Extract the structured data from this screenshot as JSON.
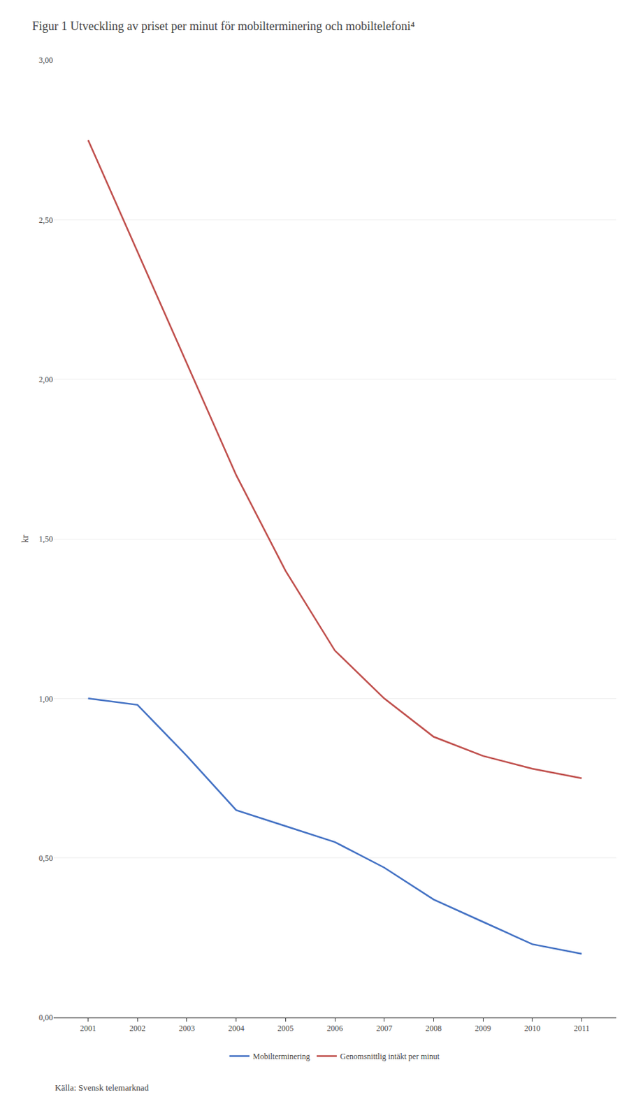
{
  "chart_data": {
    "type": "line",
    "title": "Figur 1 Utveckling av priset per minut för mobilterminering och mobiltelefoni⁴",
    "ylabel": "kr",
    "annotations": [
      "Källa: Svensk telemarknad"
    ],
    "x": [
      2001,
      2002,
      2003,
      2004,
      2005,
      2006,
      2007,
      2008,
      2009,
      2010,
      2011
    ],
    "series": [
      {
        "name": "Genomsnittlig intäkt per minut",
        "color": "#C0504D",
        "values": [
          2.75,
          2.4,
          2.05,
          1.7,
          1.4,
          1.15,
          1.0,
          0.88,
          0.82,
          0.78,
          0.75
        ]
      },
      {
        "name": "Mobilterminering",
        "color": "#4472C4",
        "values": [
          1.0,
          0.98,
          0.82,
          0.65,
          0.6,
          0.55,
          0.47,
          0.37,
          0.3,
          0.23,
          0.2
        ]
      }
    ],
    "xlim": [
      2000.3,
      2011.7
    ],
    "xticks": [
      2001,
      2002,
      2003,
      2004,
      2005,
      2006,
      2007,
      2008,
      2009,
      2010,
      2011
    ],
    "ylim": [
      0.0,
      3.0
    ],
    "yticks": [
      {
        "value": 0.0,
        "label": "0,00"
      },
      {
        "value": 0.5,
        "label": "0,50"
      },
      {
        "value": 1.0,
        "label": "1,00"
      },
      {
        "value": 1.5,
        "label": "1,50"
      },
      {
        "value": 2.0,
        "label": "2,00"
      },
      {
        "value": 2.5,
        "label": "2,50"
      },
      {
        "value": 3.0,
        "label": "3,00"
      }
    ],
    "grid": true,
    "legend": "bottom"
  }
}
